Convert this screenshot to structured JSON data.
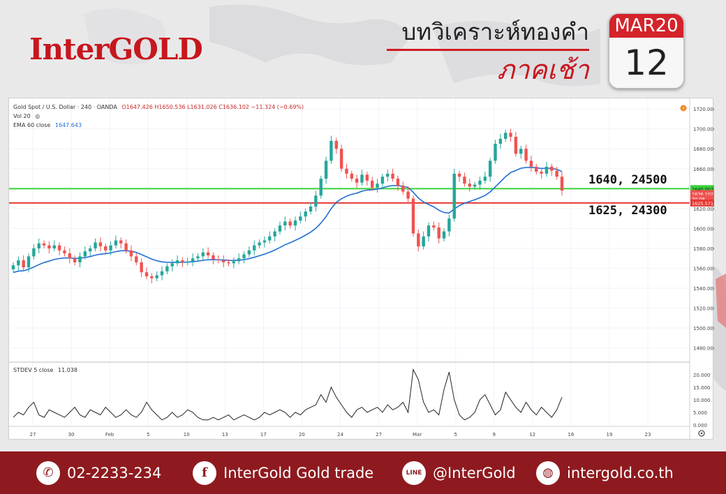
{
  "brand": {
    "logo": "InterGOLD"
  },
  "headline": {
    "line1": "บทวิเคราะห์ทองคำ",
    "line2": "ภาคเช้า"
  },
  "calendar": {
    "month": "MAR20",
    "day": "12"
  },
  "legend": {
    "symbol_line": "Gold Spot / U.S. Dollar · 240 · OANDA",
    "ohlc": "O1647.426 H1650.536 L1631.026 C1636.102 −11.324 (−0.69%)",
    "vol": "Vol 20",
    "ema_label": "EMA 60 close",
    "ema_value": "1647.643",
    "stdev_label": "STDEV 5 close",
    "stdev_value": "11.038"
  },
  "levels": {
    "support_text": "1625, 24300",
    "resistance_text": "1640, 24500",
    "resistance_tag": "1640.007",
    "price_tag": "1636.102",
    "countdown_tag": "30:08",
    "support_tag": "1625.571"
  },
  "footer": {
    "phone": "02-2233-234",
    "facebook": "InterGold Gold trade",
    "line": "@InterGold",
    "web": "intergold.co.th"
  },
  "icons": {
    "phone": "phone-icon",
    "facebook": "facebook-icon",
    "line": "line-icon",
    "web": "globe-icon",
    "settings": "gear-icon",
    "alert": "alert-icon"
  },
  "colors": {
    "up": "#26a69a",
    "down": "#ef5350",
    "ema": "#1f6fd1",
    "resistance": "#3bd13b",
    "support": "#e53935",
    "brand": "#c8161d"
  },
  "chart_data": [
    {
      "type": "candlestick",
      "title": "Gold Spot / U.S. Dollar · 240 · OANDA",
      "ylim": [
        1470,
        1725
      ],
      "yticks": [
        "1720.000",
        "1700.000",
        "1680.000",
        "1660.000",
        "1640.000",
        "1620.000",
        "1600.000",
        "1580.000",
        "1560.000",
        "1540.000",
        "1520.000",
        "1500.000",
        "1480.000"
      ],
      "xticks": [
        "27",
        "30",
        "Feb",
        "5",
        "10",
        "13",
        "17",
        "20",
        "24",
        "27",
        "Mar",
        "5",
        "9",
        "12",
        "16",
        "19",
        "23"
      ],
      "horizontal_lines": [
        {
          "value": 1640.007,
          "color": "#3bd13b"
        },
        {
          "value": 1625.571,
          "color": "#e53935"
        }
      ],
      "close_series": [
        1563,
        1568,
        1561,
        1572,
        1580,
        1585,
        1583,
        1580,
        1583,
        1578,
        1575,
        1570,
        1566,
        1572,
        1577,
        1580,
        1586,
        1582,
        1578,
        1583,
        1588,
        1585,
        1578,
        1572,
        1566,
        1556,
        1552,
        1550,
        1553,
        1557,
        1562,
        1565,
        1568,
        1566,
        1567,
        1570,
        1572,
        1576,
        1573,
        1569,
        1568,
        1566,
        1565,
        1567,
        1570,
        1574,
        1578,
        1583,
        1586,
        1588,
        1592,
        1597,
        1603,
        1607,
        1603,
        1608,
        1612,
        1617,
        1622,
        1633,
        1650,
        1668,
        1688,
        1680,
        1660,
        1655,
        1650,
        1646,
        1654,
        1648,
        1641,
        1645,
        1652,
        1655,
        1650,
        1643,
        1637,
        1630,
        1595,
        1582,
        1592,
        1603,
        1601,
        1590,
        1597,
        1610,
        1655,
        1652,
        1645,
        1642,
        1644,
        1648,
        1652,
        1668,
        1685,
        1690,
        1696,
        1692,
        1675,
        1680,
        1668,
        1662,
        1657,
        1655,
        1662,
        1658,
        1652,
        1638
      ],
      "ema": {
        "label": "EMA 60 close",
        "value": 1647.643
      }
    },
    {
      "type": "line",
      "title": "STDEV 5 close",
      "ylim": [
        0,
        23
      ],
      "yticks": [
        "20.000",
        "15.000",
        "10.000",
        "5.000",
        "0.000"
      ],
      "values": [
        3,
        5,
        4,
        7,
        9,
        4,
        3,
        6,
        5,
        4,
        3,
        5,
        7,
        4,
        3,
        6,
        5,
        4,
        7,
        5,
        3,
        4,
        6,
        4,
        3,
        5,
        9,
        6,
        4,
        2,
        3,
        5,
        3,
        4,
        6,
        5,
        3,
        2,
        2,
        3,
        2,
        3,
        4,
        2,
        3,
        4,
        3,
        2,
        3,
        5,
        4,
        5,
        6,
        5,
        3,
        5,
        4,
        6,
        7,
        8,
        12,
        9,
        15,
        11,
        8,
        5,
        3,
        6,
        7,
        5,
        6,
        7,
        5,
        8,
        6,
        7,
        9,
        5,
        22,
        18,
        9,
        5,
        6,
        4,
        14,
        21,
        10,
        4,
        2,
        3,
        5,
        10,
        12,
        8,
        4,
        6,
        13,
        10,
        7,
        5,
        9,
        6,
        4,
        7,
        5,
        3,
        6,
        11
      ]
    }
  ]
}
